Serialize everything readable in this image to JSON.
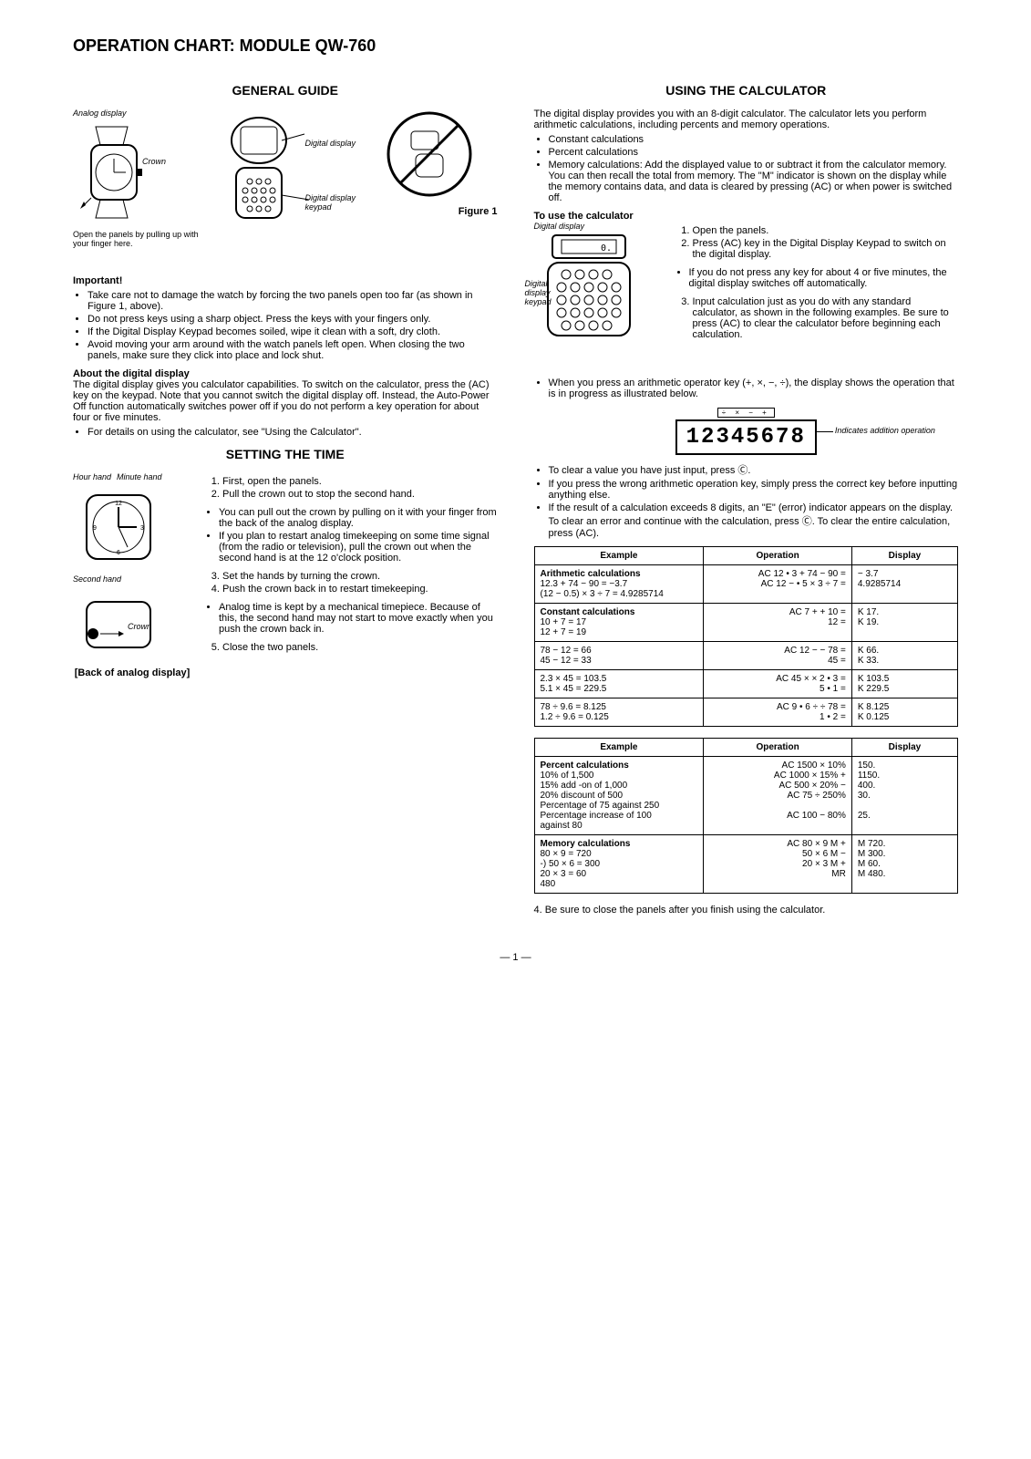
{
  "title": "OPERATION CHART: MODULE QW-760",
  "left": {
    "general_guide": "GENERAL GUIDE",
    "fig1_labels": {
      "analog_display": "Analog display",
      "crown": "Crown",
      "digital_display": "Digital display",
      "digital_display_keypad": "Digital display keypad",
      "figure1": "Figure 1",
      "open_panels": "Open the panels by pulling up with your finger here."
    },
    "important_label": "Important!",
    "important_items": [
      "Take care not to damage the watch by forcing the two panels open too far (as shown in Figure 1, above).",
      "Do not press keys using a sharp object. Press the keys with your fingers only.",
      "If the Digital Display Keypad becomes soiled, wipe it clean with a soft, dry cloth.",
      "Avoid moving your arm around with the watch panels left open. When closing the two panels, make sure they click into place and lock shut."
    ],
    "about_label": "About the digital display",
    "about_text": "The digital display gives you calculator capabilities. To switch on the calculator, press the (AC) key on the keypad. Note that you cannot switch the digital display off. Instead, the Auto-Power Off function automatically switches power off if you do not perform a key operation for about four or five minutes.",
    "about_bullet": "For details on using the calculator, see \"Using the Calculator\".",
    "setting_title": "SETTING THE TIME",
    "setting_fig_labels": {
      "hour_hand": "Hour hand",
      "minute_hand": "Minute hand",
      "second_hand": "Second hand",
      "crown": "Crown",
      "back_label": "[Back of analog display]"
    },
    "setting_steps_1": [
      "First, open the panels.",
      "Pull the crown out to stop the second hand."
    ],
    "setting_bullets_1": [
      "You can pull out the crown by pulling on it with your finger from the back of the analog display.",
      "If you plan to restart analog timekeeping on some time signal (from the radio or television), pull the crown out when the second hand is at the 12 o'clock position."
    ],
    "setting_steps_2": [
      "Set the hands by turning the crown.",
      "Push the crown back in to restart timekeeping."
    ],
    "setting_bullets_2": [
      "Analog time is kept by a mechanical timepiece. Because of this, the second hand may not start to move exactly when you push the crown back in."
    ],
    "setting_steps_3": [
      "Close the two panels."
    ]
  },
  "right": {
    "calc_title": "USING THE CALCULATOR",
    "intro": "The digital display provides you with an 8-digit calculator. The calculator lets you perform arithmetic calculations, including percents and memory operations.",
    "intro_bullets": [
      "Constant calculations",
      "Percent calculations",
      "Memory calculations: Add the displayed value to or subtract it from the calculator memory. You can then recall the total from memory. The \"M\" indicator is shown on the display while the memory contains data, and data is cleared by pressing (AC) or when power is switched off."
    ],
    "to_use_label": "To use the calculator",
    "fig_labels": {
      "digital_display": "Digital display",
      "digital_display_keypad": "Digital display keypad"
    },
    "to_use_steps": [
      "Open the panels.",
      "Press (AC) key in the Digital Display Keypad to switch on the digital display.",
      "If you do not press any key for about 4 or five minutes, the digital display switches off automatically.",
      "Input calculation just as you do with any standard calculator, as shown in the following examples. Be sure to press (AC) to clear the calculator before beginning each calculation."
    ],
    "op_indicator_text": "When you press an arithmetic operator key (+, ×, −, ÷), the display shows the operation that is in progress as illustrated below.",
    "display_value": "12345678",
    "display_indicators": "÷ × − +",
    "display_anno": "Indicates addition operation",
    "clear_bullets": [
      "To clear a value you have just input, press Ⓒ.",
      "If you press the wrong arithmetic operation key, simply press the correct key before inputting anything else.",
      "If the result of a calculation exceeds 8 digits, an \"E\" (error) indicator appears on the display. To clear an error and continue with the calculation, press Ⓒ. To clear the entire calculation, press (AC)."
    ],
    "table1": {
      "headers": [
        "Example",
        "Operation",
        "Display"
      ],
      "rows": [
        {
          "ex": "Arithmetic calculations\n12.3 + 74 − 90 = −3.7\n(12 − 0.5) × 3 ÷ 7 = 4.9285714",
          "op": "AC 12 • 3 + 74 − 90 =\nAC 12 − • 5 × 3 ÷ 7 =",
          "disp": "           − 3.7\n     4.9285714"
        },
        {
          "ex": "Constant calculations\n10 + 7 = 17\n12 + 7 = 19",
          "op": "AC 7 + + 10 =\n12 =",
          "disp": "K          17.\nK          19."
        },
        {
          "ex": "78 − 12 = 66\n45 − 12 = 33",
          "op": "AC 12 − − 78 =\n45 =",
          "disp": "K          66.\nK          33."
        },
        {
          "ex": "2.3 × 45 = 103.5\n5.1 × 45 = 229.5",
          "op": "AC 45 × × 2 • 3 =\n5 • 1 =",
          "disp": "K       103.5\nK       229.5"
        },
        {
          "ex": "78 ÷ 9.6 = 8.125\n1.2 ÷ 9.6 = 0.125",
          "op": "AC 9 • 6 ÷ ÷ 78 =\n1 • 2 =",
          "disp": "K       8.125\nK       0.125"
        }
      ]
    },
    "table2": {
      "headers": [
        "Example",
        "Operation",
        "Display"
      ],
      "rows": [
        {
          "ex": "Percent calculations\n10% of 1,500\n15% add -on of 1,000\n20% discount of 500\nPercentage of 75 against 250\nPercentage increase of 100\n  against 80",
          "op": "AC 1500 × 10%\nAC 1000 × 15% +\nAC 500 × 20% −\nAC 75 ÷ 250%\n\nAC 100 − 80%",
          "disp": "         150.\n       1150.\n         400.\n           30.\n\n           25."
        },
        {
          "ex": "Memory calculations\n  80 × 9 = 720\n-) 50 × 6 = 300\n  20 × 3 =   60\n              480",
          "op": "AC 80 × 9 M +\n50 × 6 M −\n20 × 3 M +\nMR",
          "disp": "M       720.\nM       300.\nM         60.\nM       480."
        }
      ]
    },
    "footer_note": "4. Be sure to close the panels after you finish using the calculator."
  },
  "page_number": "— 1 —"
}
